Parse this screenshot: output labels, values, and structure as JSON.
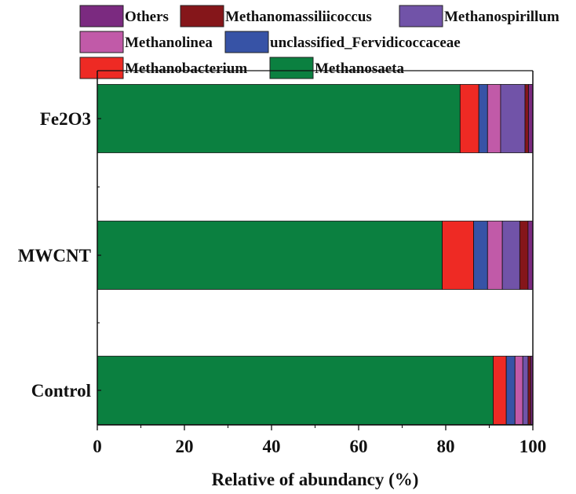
{
  "chart_data": {
    "type": "bar",
    "orientation": "horizontal",
    "stacked": true,
    "categories": [
      "Fe2O3",
      "MWCNT",
      "Control"
    ],
    "series": [
      {
        "name": "Methanosaeta",
        "color": "#0b8040",
        "values": [
          83.3,
          79.2,
          90.9
        ]
      },
      {
        "name": "Methanobacterium",
        "color": "#ee2a24",
        "values": [
          4.3,
          7.2,
          3.0
        ]
      },
      {
        "name": "unclassified_Fervidicoccaceae",
        "color": "#3753a6",
        "values": [
          2.0,
          3.2,
          2.0
        ]
      },
      {
        "name": "Methanolinea",
        "color": "#c15aa8",
        "values": [
          3.0,
          3.4,
          1.8
        ]
      },
      {
        "name": "Methanospirillum",
        "color": "#7153a8",
        "values": [
          5.6,
          4.0,
          1.2
        ]
      },
      {
        "name": "Methanomassiliicoccus",
        "color": "#85161a",
        "values": [
          0.8,
          1.9,
          0.6
        ]
      },
      {
        "name": "Others",
        "color": "#7b2a80",
        "values": [
          1.0,
          1.1,
          0.5
        ]
      }
    ],
    "legend_order": [
      "Others",
      "Methanomassiliicoccus",
      "Methanospirillum",
      "Methanolinea",
      "unclassified_Fervidicoccaceae",
      "Methanobacterium",
      "Methanosaeta"
    ],
    "xlabel": "Relative of abundancy (%)",
    "ylabel": "",
    "xlim": [
      0,
      100
    ],
    "xticks": [
      "0",
      "20",
      "40",
      "60",
      "80",
      "100"
    ],
    "grid": false,
    "legend_position": "top"
  }
}
